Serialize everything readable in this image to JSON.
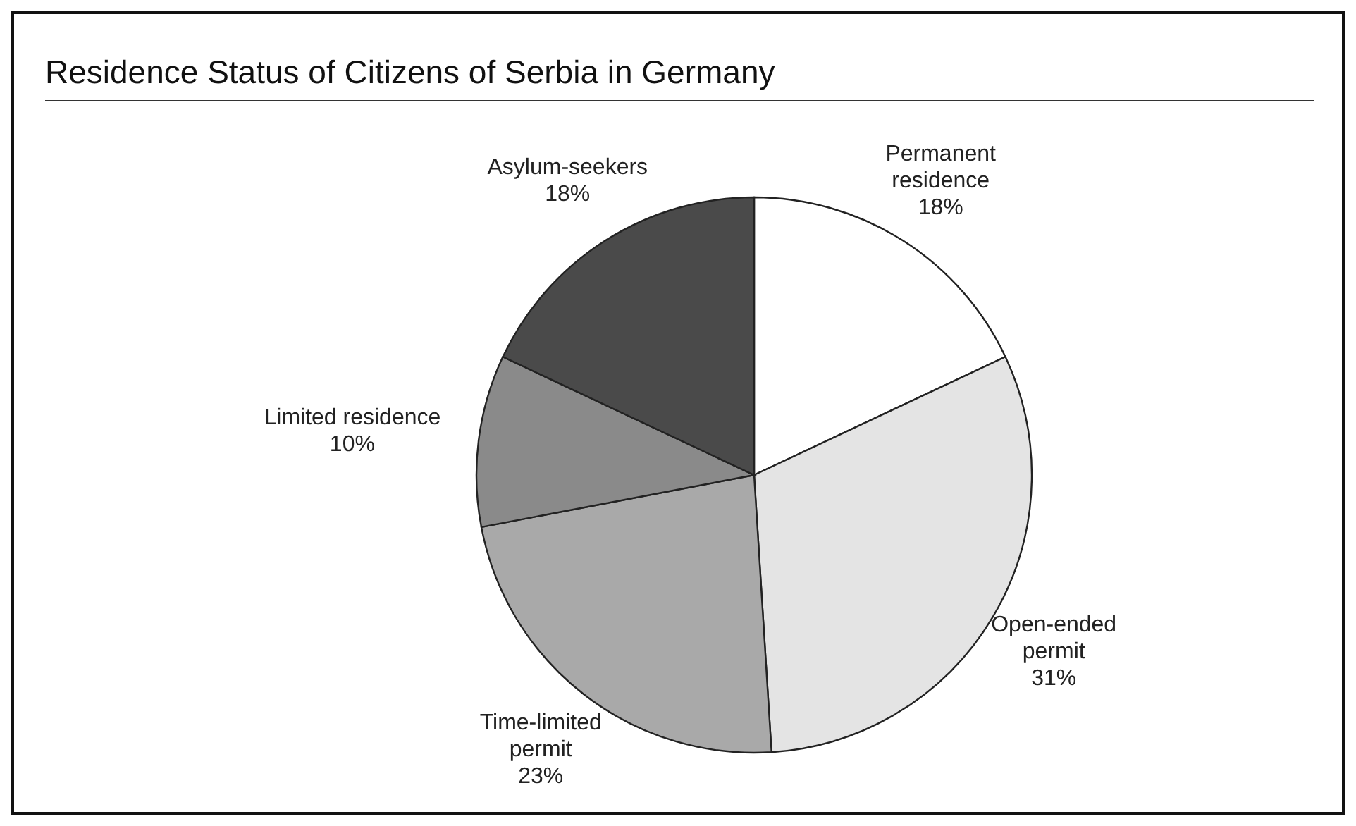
{
  "chart_data": {
    "type": "pie",
    "title": "Residence Status of Citizens of Serbia in Germany",
    "categories": [
      "Permanent residence",
      "Open-ended permit",
      "Time-limited permit",
      "Limited residence",
      "Asylum-seekers"
    ],
    "values": [
      18,
      31,
      23,
      10,
      18
    ],
    "colors": [
      "#ffffff",
      "#e4e4e4",
      "#a9a9a9",
      "#8a8a8a",
      "#4a4a4a"
    ],
    "value_labels": [
      "18%",
      "31%",
      "23%",
      "10%",
      "18%"
    ],
    "legend": false
  }
}
